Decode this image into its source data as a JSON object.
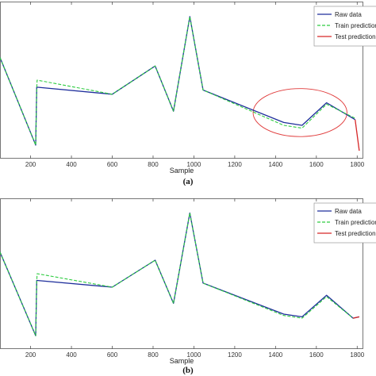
{
  "colors": {
    "raw": "#1f2f9c",
    "train": "#2ecc40",
    "test": "#d62728",
    "ellipse": "#e03a3a",
    "axis": "#555555"
  },
  "chart_data": [
    {
      "type": "line",
      "panel_label": "(a)",
      "xlabel": "Sample",
      "ylabel": "",
      "xlim": [
        50,
        1830
      ],
      "ylim": [
        0,
        1
      ],
      "xticks": [
        200,
        400,
        600,
        800,
        1000,
        1200,
        1400,
        1600,
        1800
      ],
      "legend": {
        "position": "top-right",
        "entries": [
          "Raw data",
          "Train prediction",
          "Test prediction"
        ]
      },
      "annotation": {
        "shape": "ellipse",
        "x_center": 1520,
        "x_radius": 230,
        "y_center": 0.27,
        "y_radius": 0.17
      },
      "series": [
        {
          "name": "Raw data",
          "style": "solid",
          "x": [
            50,
            225,
            230,
            600,
            810,
            900,
            980,
            1045,
            1440,
            1530,
            1650,
            1790
          ],
          "y": [
            0.66,
            0.04,
            0.45,
            0.4,
            0.6,
            0.28,
            0.95,
            0.43,
            0.2,
            0.18,
            0.34,
            0.22
          ]
        },
        {
          "name": "Train prediction",
          "style": "dashed",
          "x": [
            50,
            225,
            230,
            232,
            600,
            810,
            900,
            980,
            1045,
            1440,
            1530,
            1650,
            1790
          ],
          "y": [
            0.66,
            0.04,
            0.44,
            0.5,
            0.4,
            0.6,
            0.28,
            0.95,
            0.43,
            0.18,
            0.16,
            0.33,
            0.23
          ]
        },
        {
          "name": "Test prediction",
          "style": "solid",
          "x": [
            1790,
            1810
          ],
          "y": [
            0.22,
            0.0
          ]
        }
      ]
    },
    {
      "type": "line",
      "panel_label": "(b)",
      "xlabel": "Sample",
      "ylabel": "",
      "xlim": [
        50,
        1830
      ],
      "ylim": [
        0,
        1
      ],
      "xticks": [
        200,
        400,
        600,
        800,
        1000,
        1200,
        1400,
        1600,
        1800
      ],
      "legend": {
        "position": "top-right",
        "entries": [
          "Raw data",
          "Train prediction",
          "Test prediction"
        ]
      },
      "series": [
        {
          "name": "Raw data",
          "style": "solid",
          "x": [
            50,
            225,
            230,
            600,
            810,
            900,
            980,
            1045,
            1440,
            1530,
            1650,
            1780,
            1810
          ],
          "y": [
            0.66,
            0.04,
            0.45,
            0.4,
            0.6,
            0.28,
            0.95,
            0.43,
            0.2,
            0.18,
            0.34,
            0.17,
            0.18
          ]
        },
        {
          "name": "Train prediction",
          "style": "dashed",
          "x": [
            50,
            225,
            230,
            232,
            600,
            810,
            900,
            980,
            1045,
            1440,
            1530,
            1650,
            1780
          ],
          "y": [
            0.66,
            0.04,
            0.44,
            0.5,
            0.4,
            0.6,
            0.28,
            0.95,
            0.43,
            0.19,
            0.17,
            0.33,
            0.17
          ]
        },
        {
          "name": "Test prediction",
          "style": "solid",
          "x": [
            1780,
            1810
          ],
          "y": [
            0.17,
            0.18
          ]
        }
      ]
    }
  ]
}
